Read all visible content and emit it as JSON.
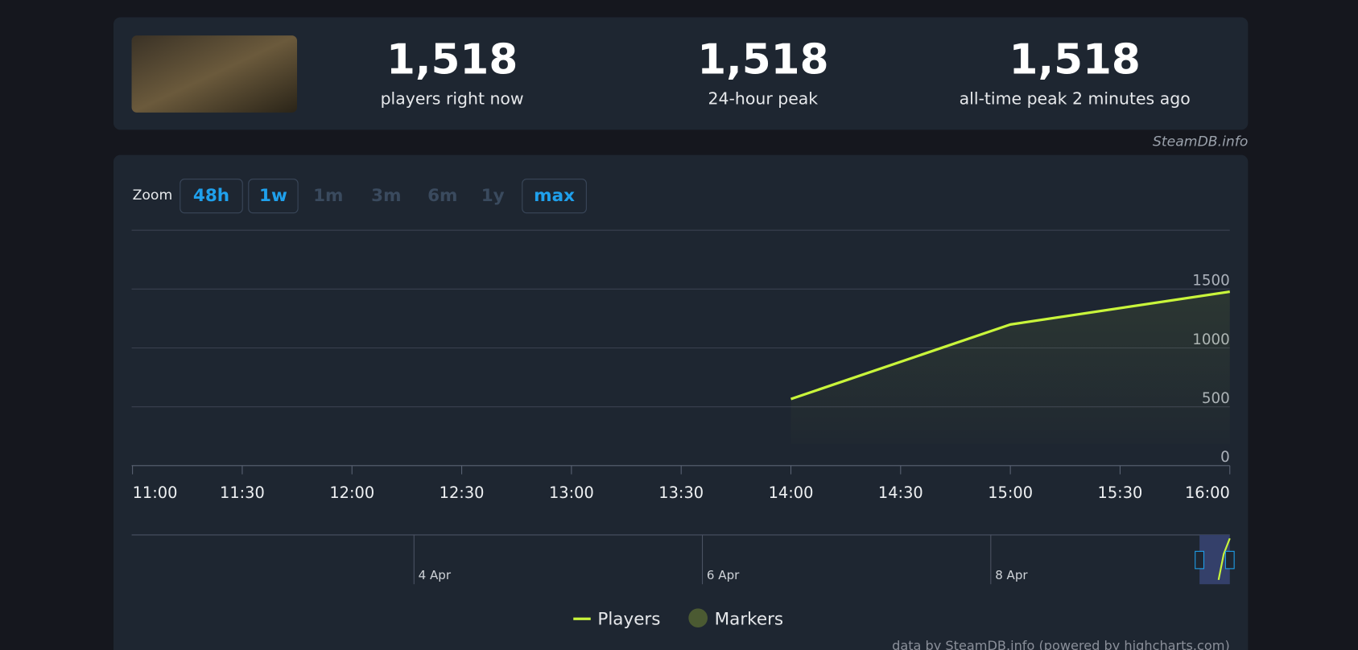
{
  "header": {
    "stats": [
      {
        "value": "1,518",
        "label": "players right now"
      },
      {
        "value": "1,518",
        "label": "24-hour peak"
      },
      {
        "value": "1,518",
        "label": "all-time peak 2 minutes ago"
      }
    ]
  },
  "source": "SteamDB.info",
  "zoom": {
    "label": "Zoom",
    "buttons": [
      {
        "label": "48h",
        "enabled": true
      },
      {
        "label": "1w",
        "enabled": true
      },
      {
        "label": "1m",
        "enabled": false
      },
      {
        "label": "3m",
        "enabled": false
      },
      {
        "label": "6m",
        "enabled": false
      },
      {
        "label": "1y",
        "enabled": false
      },
      {
        "label": "max",
        "enabled": true
      }
    ]
  },
  "chart_data": {
    "type": "line",
    "x": [
      840,
      900,
      960
    ],
    "series": [
      {
        "name": "Players",
        "color": "#c9f53b",
        "values": [
          566,
          1199,
          1478
        ]
      }
    ],
    "markers": {
      "name": "Markers",
      "color": "#4b5a32"
    },
    "xlim": [
      660,
      960
    ],
    "xticks": [
      {
        "value": 660,
        "label": "11:00"
      },
      {
        "value": 690,
        "label": "11:30"
      },
      {
        "value": 720,
        "label": "12:00"
      },
      {
        "value": 750,
        "label": "12:30"
      },
      {
        "value": 780,
        "label": "13:00"
      },
      {
        "value": 810,
        "label": "13:30"
      },
      {
        "value": 840,
        "label": "14:00"
      },
      {
        "value": 870,
        "label": "14:30"
      },
      {
        "value": 900,
        "label": "15:00"
      },
      {
        "value": 930,
        "label": "15:30"
      },
      {
        "value": 960,
        "label": "16:00"
      }
    ],
    "ylim": [
      0,
      2000
    ],
    "yticks": [
      0,
      500,
      1000,
      1500
    ],
    "grid": true,
    "navigator_labels": [
      "4 Apr",
      "6 Apr",
      "8 Apr"
    ]
  },
  "credit": "data by SteamDB.info (powered by highcharts.com)"
}
